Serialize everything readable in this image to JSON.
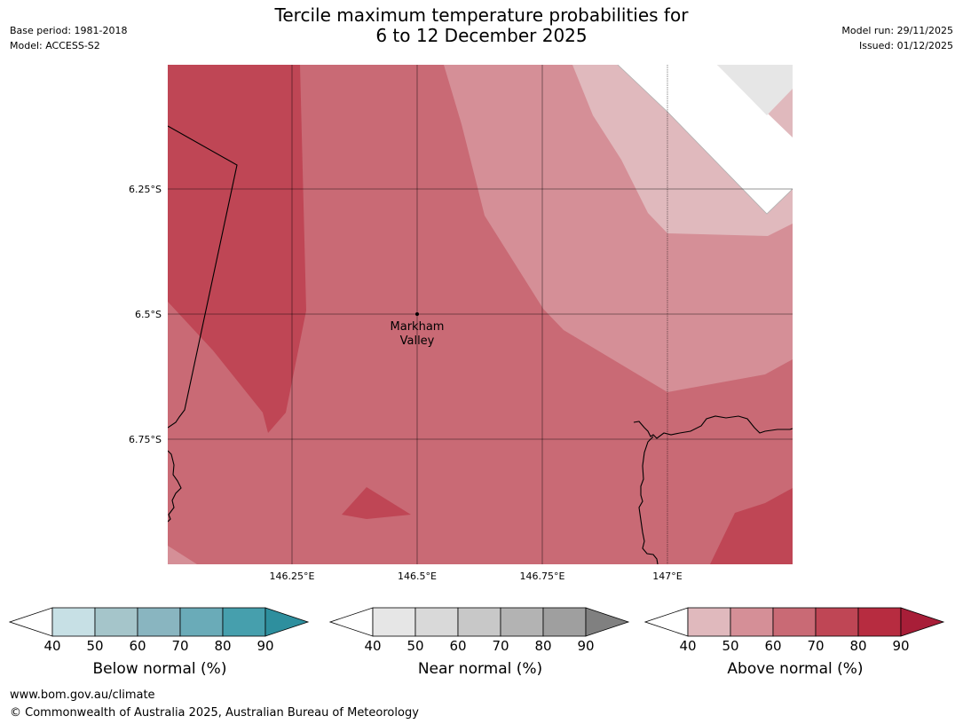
{
  "header": {
    "title_line1": "Tercile maximum temperature probabilities for",
    "title_line2": "6 to 12 December 2025",
    "base_period": "Base period: 1981-2018",
    "model": "Model: ACCESS-S2",
    "model_run": "Model run: 29/11/2025",
    "issued": "Issued: 01/12/2025"
  },
  "map": {
    "latitude_labels": [
      "6.25°S",
      "6.5°S",
      "6.75°S"
    ],
    "longitude_labels": [
      "146.25°E",
      "146.5°E",
      "146.75°E",
      "147°E"
    ],
    "place_marker": {
      "name_line1": "Markham",
      "name_line2": "Valley",
      "lon": 146.5,
      "lat": -6.5
    },
    "colors": {
      "above_80_90": "#bf4655",
      "above_70_80": "#c96a75",
      "above_60_70": "#d58f97",
      "above_50_60": "#e0b9bd",
      "near_40_50": "#e6e6e6",
      "no_data": "#ffffff"
    }
  },
  "colorbars": [
    {
      "id": "below",
      "label": "Below normal (%)",
      "ticks": [
        "40",
        "50",
        "60",
        "70",
        "80",
        "90"
      ],
      "colors": [
        "#c7e0e5",
        "#a5c5ca",
        "#89b5c0",
        "#6aabb8",
        "#469fad"
      ],
      "extend_low": "#ffffff",
      "extend_high": "#2e8f9e"
    },
    {
      "id": "near",
      "label": "Near normal (%)",
      "ticks": [
        "40",
        "50",
        "60",
        "70",
        "80",
        "90"
      ],
      "colors": [
        "#e6e6e6",
        "#d9d9d9",
        "#c8c8c8",
        "#b3b3b3",
        "#9f9f9f"
      ],
      "extend_low": "#ffffff",
      "extend_high": "#808080"
    },
    {
      "id": "above",
      "label": "Above normal (%)",
      "ticks": [
        "40",
        "50",
        "60",
        "70",
        "80",
        "90"
      ],
      "colors": [
        "#e0b9bd",
        "#d58f97",
        "#c96a75",
        "#bf4655",
        "#b72c40"
      ],
      "extend_low": "#ffffff",
      "extend_high": "#a81e38"
    }
  ],
  "footer": {
    "url": "www.bom.gov.au/climate",
    "copyright": "© Commonwealth of Australia 2025, Australian Bureau of Meteorology"
  }
}
